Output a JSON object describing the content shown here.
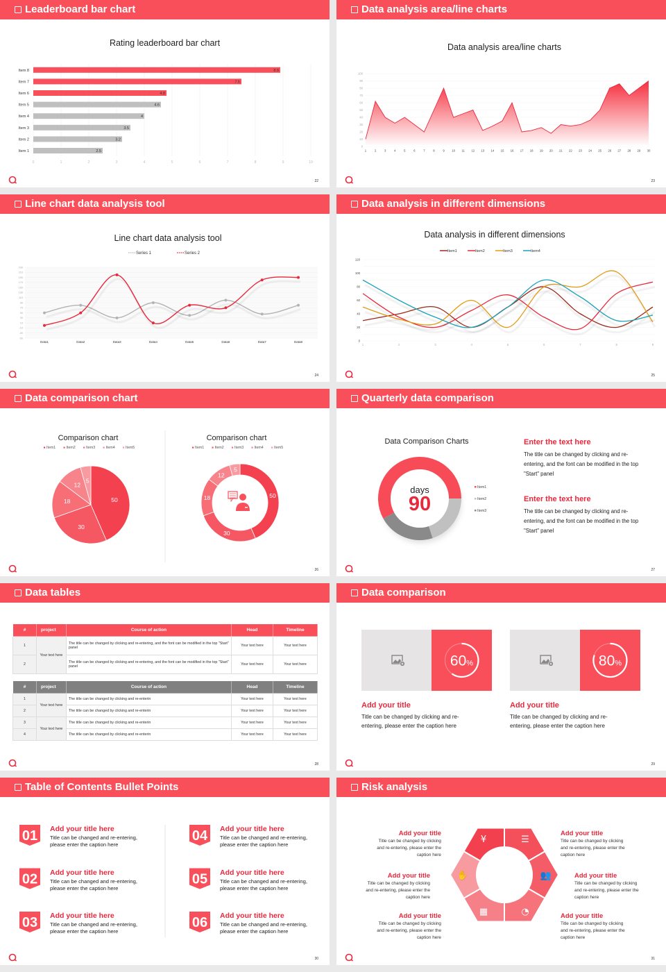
{
  "theme": {
    "accent": "#f94f5a",
    "accent_dark": "#e8293d",
    "gray": "#bfbfbf"
  },
  "slides": [
    {
      "title": "Leaderboard bar chart",
      "page": "22"
    },
    {
      "title": "Data analysis area/line charts",
      "page": "23"
    },
    {
      "title": "Line chart data analysis tool",
      "page": "24"
    },
    {
      "title": "Data analysis in different dimensions",
      "page": "25"
    },
    {
      "title": "Data comparison chart",
      "page": "26"
    },
    {
      "title": "Quarterly data comparison",
      "page": "27"
    },
    {
      "title": "Data tables",
      "page": "28"
    },
    {
      "title": "Data comparison",
      "page": "29"
    },
    {
      "title": "Table of Contents Bullet Points",
      "page": "30"
    },
    {
      "title": "Risk analysis",
      "page": "31"
    }
  ],
  "chart_data": [
    {
      "type": "bar",
      "orientation": "horizontal",
      "title": "Rating leaderboard bar chart",
      "categories": [
        "Item 1",
        "Item 2",
        "Item 3",
        "Item 4",
        "Item 5",
        "Item 6",
        "Item 7",
        "Item 8"
      ],
      "values": [
        2.5,
        3.2,
        3.5,
        4,
        4.6,
        4.8,
        7.5,
        8.9
      ],
      "value_labels": [
        "2.5",
        "3.2",
        "3.5",
        "4",
        "4.6",
        "4.8",
        "7.5",
        "8.9"
      ],
      "highlight_top": 3,
      "highlight_color": "#f94f5a",
      "base_color": "#bfbfbf",
      "xlim": [
        0,
        10
      ],
      "xticks": [
        "0",
        "1",
        "2",
        "3",
        "4",
        "5",
        "6",
        "7",
        "8",
        "9",
        "10"
      ],
      "grid": true
    },
    {
      "type": "area",
      "title": "Data analysis area/line charts",
      "x": [
        "1",
        "2",
        "3",
        "4",
        "5",
        "6",
        "7",
        "8",
        "9",
        "10",
        "11",
        "12",
        "13",
        "14",
        "15",
        "16",
        "17",
        "18",
        "19",
        "20",
        "21",
        "22",
        "23",
        "24",
        "25",
        "26",
        "27",
        "28",
        "29",
        "30"
      ],
      "values": [
        10,
        62,
        40,
        32,
        40,
        30,
        20,
        50,
        80,
        40,
        45,
        50,
        22,
        28,
        35,
        60,
        20,
        22,
        26,
        18,
        30,
        28,
        30,
        36,
        50,
        80,
        86,
        70,
        80,
        90
      ],
      "ylim": [
        0,
        100
      ],
      "yticks": [
        "0",
        "10",
        "20",
        "30",
        "40",
        "50",
        "60",
        "70",
        "80",
        "90",
        "100"
      ],
      "color": "#e8293d",
      "grid": true
    },
    {
      "type": "line",
      "smooth": true,
      "title": "Line chart data analysis tool",
      "categories": [
        "Data1",
        "Data2",
        "Data3",
        "Data4",
        "Data5",
        "Data6",
        "Data7",
        "Data8"
      ],
      "series": [
        {
          "name": "Series 1",
          "color": "#b3b3b3",
          "values": [
            50,
            80,
            30,
            90,
            40,
            100,
            45,
            80
          ]
        },
        {
          "name": "Series 2",
          "color": "#e8293d",
          "values": [
            0,
            50,
            200,
            10,
            80,
            70,
            180,
            190
          ]
        }
      ],
      "ylim": [
        -50,
        230
      ],
      "yticks": [
        "230",
        "210",
        "190",
        "170",
        "150",
        "130",
        "110",
        "90",
        "70",
        "50",
        "30",
        "10",
        "-10",
        "-30",
        "-50"
      ],
      "legend": "top",
      "grid": true
    },
    {
      "type": "line",
      "smooth": true,
      "title": "Data analysis in different dimensions",
      "x": [
        "1",
        "2",
        "3",
        "4",
        "5",
        "6",
        "7",
        "8",
        "9"
      ],
      "series": [
        {
          "name": "Item1",
          "color": "#9c2a17",
          "values": [
            30,
            40,
            50,
            20,
            50,
            80,
            40,
            20,
            50
          ]
        },
        {
          "name": "Item2",
          "color": "#e8283c",
          "values": [
            70,
            35,
            20,
            45,
            68,
            35,
            18,
            70,
            87
          ]
        },
        {
          "name": "Item3",
          "color": "#e39a12",
          "values": [
            50,
            32,
            25,
            60,
            20,
            80,
            80,
            102,
            28
          ]
        },
        {
          "name": "Item4",
          "color": "#1aa3b9",
          "values": [
            90,
            60,
            35,
            20,
            50,
            90,
            65,
            30,
            38
          ]
        }
      ],
      "ylim": [
        0,
        120
      ],
      "yticks": [
        "0",
        "20",
        "40",
        "60",
        "80",
        "100",
        "120"
      ],
      "legend": "top",
      "grid": true
    },
    {
      "type": "pie",
      "title": "Comparison chart",
      "categories": [
        "Item1",
        "Item2",
        "Item3",
        "Item4",
        "Item5"
      ],
      "values": [
        50,
        30,
        18,
        12,
        5
      ],
      "value_labels": [
        "50",
        "30",
        "18",
        "12",
        "5"
      ],
      "colors": [
        "#f4414f",
        "#f65863",
        "#f76e77",
        "#f8848b",
        "#f99aa0"
      ],
      "legend": "top"
    },
    {
      "type": "pie",
      "donut": true,
      "title": "Comparison chart",
      "categories": [
        "Item1",
        "Item2",
        "Item3",
        "Item4",
        "Item5"
      ],
      "values": [
        50,
        30,
        18,
        12,
        5
      ],
      "value_labels": [
        "50",
        "30",
        "18",
        "12",
        "5"
      ],
      "colors": [
        "#f4414f",
        "#f65863",
        "#f76e77",
        "#f8848b",
        "#f99aa0"
      ],
      "legend": "top",
      "center_icon": "customer-service-icon"
    },
    {
      "type": "pie",
      "donut": true,
      "title": "Data Comparison Charts",
      "categories": [
        "Item1",
        "Item2",
        "Item3"
      ],
      "values": [
        58,
        20,
        22
      ],
      "colors": [
        "#f74c57",
        "#c0c0c0",
        "#8a8a8a"
      ],
      "legend": "right",
      "center_label": "days",
      "center_value": "90"
    }
  ],
  "quarterly": {
    "blocks": [
      {
        "heading": "Enter the text here",
        "body": "The title can be changed by clicking and re-entering, and the font can be modified in the top \"Start\" panel"
      },
      {
        "heading": "Enter the text here",
        "body": "The title can be changed by clicking and re-entering, and the font can be modified in the top \"Start\" panel"
      }
    ]
  },
  "tables": [
    {
      "header_color": "#f94f5a",
      "headers": [
        "#",
        "project",
        "Course of action",
        "Head",
        "Timeline"
      ],
      "groups": [
        {
          "project": "Your text here",
          "rows": [
            {
              "n": "1",
              "action": "The title can be changed by clicking and re-entering, and the font can be modified in the top \"Start\" panel",
              "head": "Your text here",
              "timeline": "Your text here"
            },
            {
              "n": "2",
              "action": "The title can be changed by clicking and re-entering, and the font can be modified in the top \"Start\" panel",
              "head": "Your text here",
              "timeline": "Your text here"
            }
          ]
        }
      ]
    },
    {
      "header_color": "#808080",
      "headers": [
        "#",
        "project",
        "Course of action",
        "Head",
        "Timeline"
      ],
      "groups": [
        {
          "project": "Your text here",
          "rows": [
            {
              "n": "1",
              "action": "The title can be changed by clicking and re-enterin",
              "head": "Your text here",
              "timeline": "Your text here"
            },
            {
              "n": "2",
              "action": "The title can be changed by clicking and re-enterin",
              "head": "Your text here",
              "timeline": "Your text here"
            }
          ]
        },
        {
          "project": "Your text here",
          "rows": [
            {
              "n": "3",
              "action": "The title can be changed by clicking and re-enterin",
              "head": "Your text here",
              "timeline": "Your text here"
            },
            {
              "n": "4",
              "action": "The title can be changed by clicking and re-enterin",
              "head": "Your text here",
              "timeline": "Your text here"
            }
          ]
        }
      ]
    }
  ],
  "comparison": {
    "cards": [
      {
        "percent": "60",
        "unit": "%",
        "fraction": 0.6,
        "title": "Add your title",
        "body": "Title can be changed by clicking and re-entering, please enter the caption here",
        "icon": "add-image-icon"
      },
      {
        "percent": "80",
        "unit": "%",
        "fraction": 0.8,
        "title": "Add your title",
        "body": "Title can be changed by clicking and re-entering, please enter the caption here",
        "icon": "add-image-icon"
      }
    ]
  },
  "toc": {
    "items": [
      {
        "num": "01",
        "title": "Add your title here",
        "body": "Title can be changed and re-entering, please enter the caption here"
      },
      {
        "num": "02",
        "title": "Add your title here",
        "body": "Title can be changed and re-entering, please enter the caption here"
      },
      {
        "num": "03",
        "title": "Add your title here",
        "body": "Title can be changed and re-entering, please enter the caption here"
      },
      {
        "num": "04",
        "title": "Add your title here",
        "body": "Title can be changed and re-entering, please enter the caption here"
      },
      {
        "num": "05",
        "title": "Add your title here",
        "body": "Title can be changed and re-entering, please enter the caption here"
      },
      {
        "num": "06",
        "title": "Add your title here",
        "body": "Title can be changed and re-entering, please enter the caption here"
      }
    ]
  },
  "risk": {
    "items": [
      {
        "title": "Add your title",
        "body": "Title can be changed by clicking and re-entering, please enter the caption here"
      },
      {
        "title": "Add your title",
        "body": "Title can be changed by clicking and re-entering, please enter the caption here"
      },
      {
        "title": "Add your title",
        "body": "Title can be changed by clicking and re-entering, please enter the caption here"
      },
      {
        "title": "Add your title",
        "body": "Title can be changed by clicking and re-entering, please enter the caption here"
      },
      {
        "title": "Add your title",
        "body": "Title can be changed by clicking and re-entering, please enter the caption here"
      },
      {
        "title": "Add your title",
        "body": "Title can be changed by clicking and re-entering, please enter the caption here"
      }
    ],
    "icons": [
      "money-bag-icon",
      "coins-icon",
      "people-icon",
      "pie-chart-icon",
      "building-icon",
      "hand-money-icon"
    ]
  }
}
